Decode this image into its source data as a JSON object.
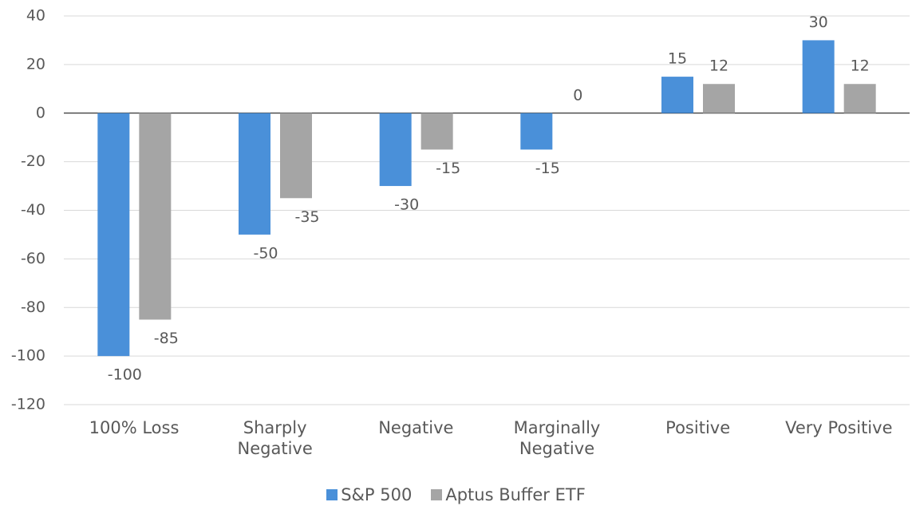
{
  "chart_data": {
    "type": "bar",
    "categories": [
      "100% Loss",
      "Sharply Negative",
      "Negative",
      "Marginally Negative",
      "Positive",
      "Very Positive"
    ],
    "series": [
      {
        "name": "S&P 500",
        "color": "#4a90d9",
        "values": [
          -100,
          -50,
          -30,
          -15,
          15,
          30
        ]
      },
      {
        "name": "Aptus Buffer ETF",
        "color": "#a5a5a5",
        "values": [
          -85,
          -35,
          -15,
          0,
          12,
          12
        ]
      }
    ],
    "ylim": [
      -120,
      40
    ],
    "yticks": [
      -120,
      -100,
      -80,
      -60,
      -40,
      -20,
      0,
      20,
      40
    ],
    "grid": true,
    "legend": "bottom"
  }
}
